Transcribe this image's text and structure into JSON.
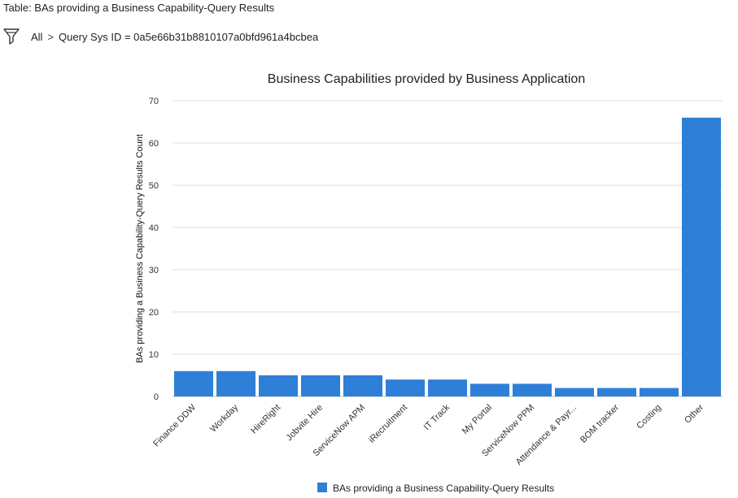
{
  "header": {
    "table_title": "Table: BAs providing a Business Capability-Query Results"
  },
  "breadcrumb": {
    "icon": "filter-funnel-icon",
    "all_label": "All",
    "separator": ">",
    "condition": "Query Sys ID = 0a5e66b31b8810107a0bfd961a4bcbea"
  },
  "chart_data": {
    "type": "bar",
    "title": "Business Capabilities provided by Business Application",
    "xlabel": "",
    "ylabel": "BAs providing a Business Capability-Query Results Count",
    "ylim": [
      0,
      70
    ],
    "yticks": [
      0,
      10,
      20,
      30,
      40,
      50,
      60,
      70
    ],
    "grid": true,
    "legend_position": "bottom",
    "bar_color": "#2e7fd8",
    "categories": [
      "Finance DDW",
      "Workday",
      "HireRight",
      "Jobvite Hire",
      "ServiceNow APM",
      "iRecruitment",
      "IT Track",
      "My Portal",
      "ServiceNow PPM",
      "Attendance & Payr...",
      "BOM tracker",
      "Costing",
      "Other"
    ],
    "series": [
      {
        "name": "BAs providing a Business Capability-Query Results",
        "values": [
          6,
          6,
          5,
          5,
          5,
          4,
          4,
          3,
          3,
          2,
          2,
          2,
          66
        ]
      }
    ]
  }
}
